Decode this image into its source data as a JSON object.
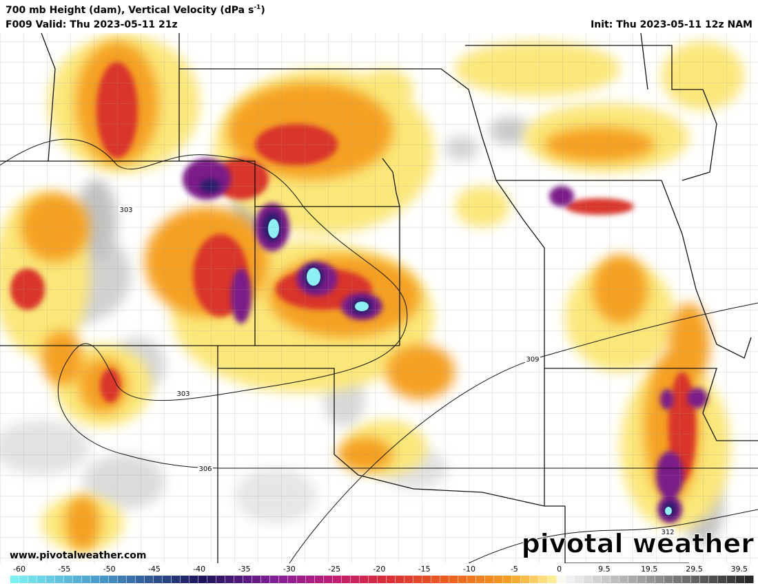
{
  "header": {
    "title": "700 mb Height (dam), Vertical Velocity (dPa s",
    "title_superscript": "-1",
    "title_end": ")",
    "valid": "F009 Valid: Thu 2023-05-11 21z",
    "init": "Init: Thu 2023-05-11 12z NAM"
  },
  "map": {
    "contour_labels": [
      303,
      303,
      309,
      306,
      312
    ]
  },
  "footer": {
    "website": "www.pivotalweather.com",
    "logo": "pivotal weather"
  },
  "colorbar": {
    "ticks": [
      -60,
      -55,
      -50,
      -45,
      -40,
      -35,
      -30,
      -25,
      -20,
      -15,
      -10,
      -5,
      0,
      9.5,
      19.5,
      29.5,
      39.5
    ]
  }
}
